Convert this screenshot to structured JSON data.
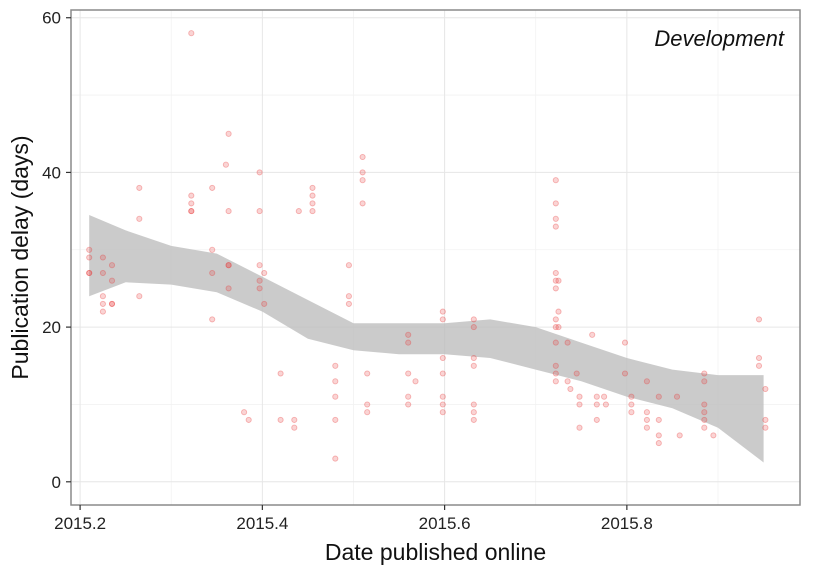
{
  "chart_data": {
    "type": "scatter",
    "title": "",
    "panel_label": "Development",
    "xlabel": "Date published online",
    "ylabel": "Publication delay (days)",
    "xlim": [
      2015.19,
      2015.99
    ],
    "ylim": [
      -3,
      61
    ],
    "x_ticks": [
      2015.2,
      2015.4,
      2015.6,
      2015.8
    ],
    "x_tick_labels": [
      "2015.2",
      "2015.4",
      "2015.6",
      "2015.8"
    ],
    "y_ticks": [
      0,
      20,
      40,
      60
    ],
    "y_tick_labels": [
      "0",
      "20",
      "40",
      "60"
    ],
    "grid": true,
    "point_color": "#e83a3a",
    "ribbon_color": "#bebebe",
    "points": [
      [
        2015.21,
        30
      ],
      [
        2015.21,
        29
      ],
      [
        2015.21,
        27
      ],
      [
        2015.21,
        27
      ],
      [
        2015.225,
        29
      ],
      [
        2015.225,
        27
      ],
      [
        2015.225,
        24
      ],
      [
        2015.225,
        23
      ],
      [
        2015.225,
        22
      ],
      [
        2015.235,
        28
      ],
      [
        2015.235,
        26
      ],
      [
        2015.235,
        23
      ],
      [
        2015.235,
        23
      ],
      [
        2015.265,
        38
      ],
      [
        2015.265,
        34
      ],
      [
        2015.265,
        24
      ],
      [
        2015.322,
        58
      ],
      [
        2015.322,
        37
      ],
      [
        2015.322,
        36
      ],
      [
        2015.322,
        35
      ],
      [
        2015.322,
        35
      ],
      [
        2015.345,
        38
      ],
      [
        2015.345,
        30
      ],
      [
        2015.345,
        27
      ],
      [
        2015.345,
        21
      ],
      [
        2015.36,
        41
      ],
      [
        2015.363,
        45
      ],
      [
        2015.363,
        35
      ],
      [
        2015.363,
        28
      ],
      [
        2015.363,
        28
      ],
      [
        2015.363,
        25
      ],
      [
        2015.38,
        9
      ],
      [
        2015.385,
        8
      ],
      [
        2015.397,
        40
      ],
      [
        2015.397,
        35
      ],
      [
        2015.397,
        28
      ],
      [
        2015.397,
        26
      ],
      [
        2015.397,
        25
      ],
      [
        2015.402,
        27
      ],
      [
        2015.402,
        23
      ],
      [
        2015.42,
        14
      ],
      [
        2015.42,
        8
      ],
      [
        2015.435,
        8
      ],
      [
        2015.435,
        7
      ],
      [
        2015.44,
        35
      ],
      [
        2015.455,
        38
      ],
      [
        2015.455,
        37
      ],
      [
        2015.455,
        36
      ],
      [
        2015.455,
        35
      ],
      [
        2015.48,
        15
      ],
      [
        2015.48,
        13
      ],
      [
        2015.48,
        11
      ],
      [
        2015.48,
        8
      ],
      [
        2015.48,
        3
      ],
      [
        2015.495,
        28
      ],
      [
        2015.495,
        24
      ],
      [
        2015.495,
        23
      ],
      [
        2015.51,
        42
      ],
      [
        2015.51,
        40
      ],
      [
        2015.51,
        39
      ],
      [
        2015.51,
        36
      ],
      [
        2015.515,
        14
      ],
      [
        2015.515,
        10
      ],
      [
        2015.515,
        9
      ],
      [
        2015.56,
        19
      ],
      [
        2015.56,
        18
      ],
      [
        2015.56,
        14
      ],
      [
        2015.56,
        11
      ],
      [
        2015.56,
        10
      ],
      [
        2015.568,
        13
      ],
      [
        2015.598,
        22
      ],
      [
        2015.598,
        21
      ],
      [
        2015.598,
        16
      ],
      [
        2015.598,
        14
      ],
      [
        2015.598,
        11
      ],
      [
        2015.598,
        10
      ],
      [
        2015.598,
        9
      ],
      [
        2015.632,
        21
      ],
      [
        2015.632,
        20
      ],
      [
        2015.632,
        16
      ],
      [
        2015.632,
        15
      ],
      [
        2015.632,
        10
      ],
      [
        2015.632,
        9
      ],
      [
        2015.632,
        8
      ],
      [
        2015.722,
        39
      ],
      [
        2015.722,
        36
      ],
      [
        2015.722,
        34
      ],
      [
        2015.722,
        33
      ],
      [
        2015.722,
        27
      ],
      [
        2015.722,
        26
      ],
      [
        2015.722,
        25
      ],
      [
        2015.722,
        21
      ],
      [
        2015.722,
        20
      ],
      [
        2015.722,
        18
      ],
      [
        2015.722,
        15
      ],
      [
        2015.722,
        14
      ],
      [
        2015.722,
        13
      ],
      [
        2015.725,
        26
      ],
      [
        2015.725,
        22
      ],
      [
        2015.725,
        20
      ],
      [
        2015.735,
        18
      ],
      [
        2015.735,
        13
      ],
      [
        2015.738,
        12
      ],
      [
        2015.745,
        14
      ],
      [
        2015.748,
        11
      ],
      [
        2015.748,
        10
      ],
      [
        2015.748,
        7
      ],
      [
        2015.762,
        19
      ],
      [
        2015.767,
        11
      ],
      [
        2015.767,
        10
      ],
      [
        2015.767,
        8
      ],
      [
        2015.775,
        11
      ],
      [
        2015.777,
        10
      ],
      [
        2015.798,
        18
      ],
      [
        2015.798,
        14
      ],
      [
        2015.805,
        11
      ],
      [
        2015.805,
        10
      ],
      [
        2015.805,
        9
      ],
      [
        2015.822,
        13
      ],
      [
        2015.822,
        9
      ],
      [
        2015.822,
        8
      ],
      [
        2015.822,
        7
      ],
      [
        2015.835,
        11
      ],
      [
        2015.835,
        8
      ],
      [
        2015.835,
        6
      ],
      [
        2015.835,
        5
      ],
      [
        2015.855,
        11
      ],
      [
        2015.858,
        6
      ],
      [
        2015.885,
        14
      ],
      [
        2015.885,
        13
      ],
      [
        2015.885,
        10
      ],
      [
        2015.885,
        9
      ],
      [
        2015.885,
        8
      ],
      [
        2015.885,
        7
      ],
      [
        2015.895,
        6
      ],
      [
        2015.945,
        21
      ],
      [
        2015.945,
        16
      ],
      [
        2015.945,
        15
      ],
      [
        2015.952,
        12
      ],
      [
        2015.952,
        8
      ],
      [
        2015.952,
        7
      ]
    ],
    "smooth_ci": {
      "x": [
        2015.21,
        2015.25,
        2015.3,
        2015.35,
        2015.4,
        2015.45,
        2015.5,
        2015.55,
        2015.6,
        2015.65,
        2015.7,
        2015.75,
        2015.8,
        2015.85,
        2015.9,
        2015.95
      ],
      "upper": [
        34.5,
        32.5,
        30.5,
        29.5,
        26.5,
        23.5,
        20.5,
        20.5,
        20.5,
        21.0,
        20.0,
        18.0,
        16.0,
        14.5,
        13.8,
        13.8
      ],
      "lower": [
        24.0,
        25.8,
        25.5,
        24.5,
        22.0,
        18.5,
        17.0,
        16.5,
        16.5,
        16.0,
        14.5,
        13.0,
        11.0,
        9.5,
        7.0,
        2.5
      ]
    }
  }
}
